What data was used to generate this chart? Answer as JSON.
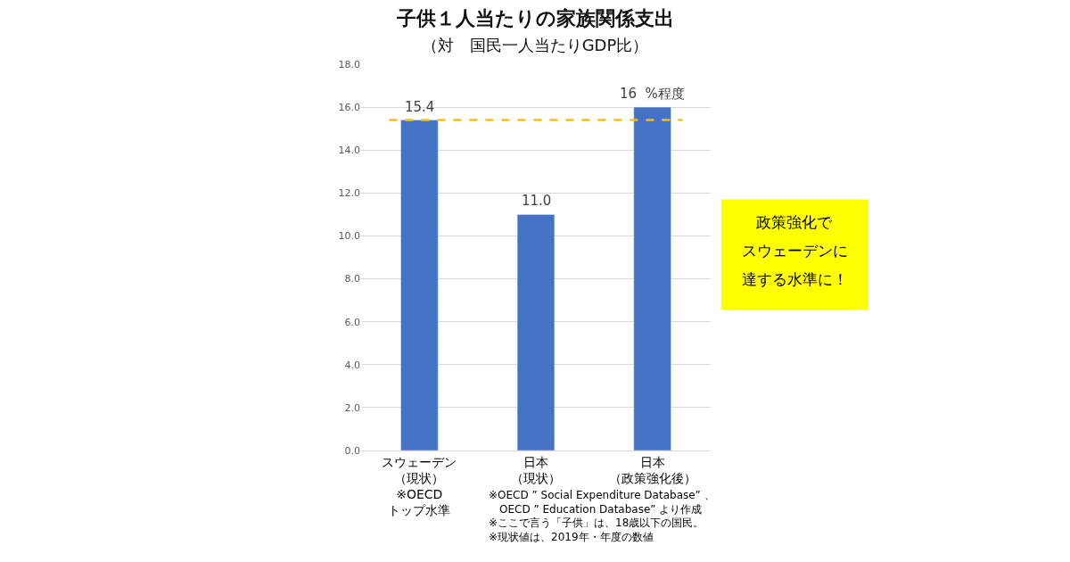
{
  "chart_data": {
    "type": "bar",
    "title": "子供１人当たりの家族関係支出",
    "subtitle": "（対　国民一人当たりGDP比）",
    "categories": [
      "スウェーデン（現状）※OECDトップ水準",
      "日本（現状）",
      "日本（政策強化後）"
    ],
    "values": [
      15.4,
      11.0,
      16
    ],
    "value_labels": [
      "15.4",
      "11.0",
      "16  %程度"
    ],
    "color": "#4472c4",
    "ylim": [
      0,
      18
    ],
    "yticks": [
      {
        "value": 0,
        "label": "0.0"
      },
      {
        "value": 2,
        "label": "2.0"
      },
      {
        "value": 4,
        "label": "4.0"
      },
      {
        "value": 6,
        "label": "6.0"
      },
      {
        "value": 8,
        "label": "8.0"
      },
      {
        "value": 10,
        "label": "10.0"
      },
      {
        "value": 12,
        "label": "12.0"
      },
      {
        "value": 14,
        "label": "14.0"
      },
      {
        "value": 16,
        "label": "16.0"
      },
      {
        "value": 18,
        "label": "18.0"
      }
    ],
    "grid": "y",
    "legend": false,
    "ref_lines": [
      {
        "axis": "y",
        "value": 15.4,
        "label": null,
        "color": "#ffc000",
        "line_style": "dashed"
      }
    ],
    "annotations": [
      "政策強化で",
      "スウェーデンに",
      "達する水準に！",
      "※OECD ” Social Expenditure Database” 、\n　OECD ” Education Database” より作成",
      "※ここで言う「子供」は、18歳以下の国民。",
      "※現状値は、2019年・年度の数値"
    ]
  }
}
